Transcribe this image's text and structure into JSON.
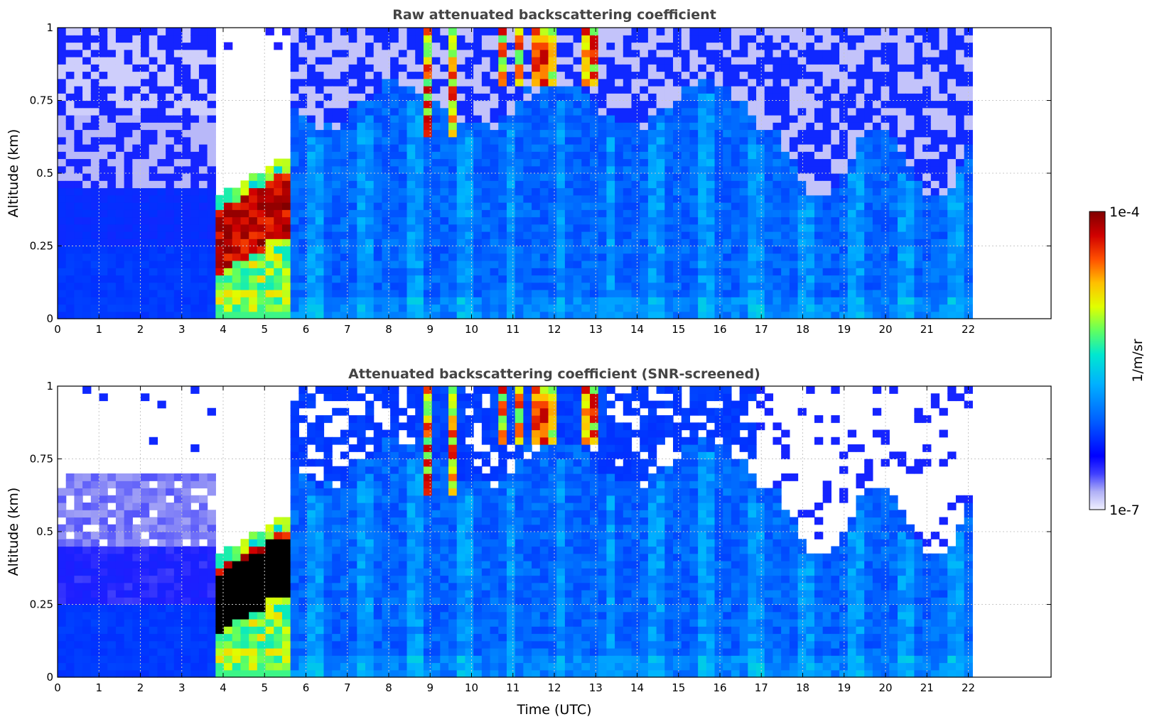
{
  "chart_data": [
    {
      "type": "heatmap",
      "title": "Raw attenuated backscattering coefficient",
      "xlabel": "",
      "ylabel": "Altitude (km)",
      "xlim": [
        0,
        24
      ],
      "ylim": [
        0,
        1
      ],
      "x_ticks": [
        0,
        1,
        2,
        3,
        4,
        5,
        6,
        7,
        8,
        9,
        10,
        11,
        12,
        13,
        14,
        15,
        16,
        17,
        18,
        19,
        20,
        21,
        22
      ],
      "y_ticks": [
        0,
        0.25,
        0.5,
        0.75,
        1
      ],
      "y_tick_labels": [
        "0",
        "0.25",
        "0.5",
        "0.75",
        "1"
      ],
      "data_end_time": 22.1,
      "screened": false,
      "grid": true,
      "features": [
        {
          "label": "dense low cloud",
          "t_start": 3.75,
          "t_end": 5.6,
          "alt_min": 0.0,
          "alt_max": 0.55,
          "level": "high"
        },
        {
          "label": "high cloud",
          "t_start": 8.7,
          "t_end": 9.8,
          "alt_min": 0.62,
          "alt_max": 1.0,
          "level": "high"
        },
        {
          "label": "high cloud",
          "t_start": 10.5,
          "t_end": 13.2,
          "alt_min": 0.8,
          "alt_max": 1.0,
          "level": "high"
        }
      ]
    },
    {
      "type": "heatmap",
      "title": "Attenuated backscattering coefficient (SNR-screened)",
      "xlabel": "Time (UTC)",
      "ylabel": "Altitude (km)",
      "xlim": [
        0,
        24
      ],
      "ylim": [
        0,
        1
      ],
      "x_ticks": [
        0,
        1,
        2,
        3,
        4,
        5,
        6,
        7,
        8,
        9,
        10,
        11,
        12,
        13,
        14,
        15,
        16,
        17,
        18,
        19,
        20,
        21,
        22
      ],
      "y_ticks": [
        0,
        0.25,
        0.5,
        0.75,
        1
      ],
      "y_tick_labels": [
        "0",
        "0.25",
        "0.5",
        "0.75",
        "1"
      ],
      "data_end_time": 22.1,
      "screened": true,
      "grid": true,
      "features": [
        {
          "label": "dense low cloud",
          "t_start": 3.75,
          "t_end": 5.6,
          "alt_min": 0.0,
          "alt_max": 0.55,
          "level": "saturated"
        },
        {
          "label": "high cloud",
          "t_start": 8.7,
          "t_end": 9.8,
          "alt_min": 0.62,
          "alt_max": 1.0,
          "level": "high"
        },
        {
          "label": "high cloud",
          "t_start": 10.5,
          "t_end": 13.2,
          "alt_min": 0.8,
          "alt_max": 1.0,
          "level": "high"
        }
      ]
    }
  ],
  "colorbar": {
    "min_label": "1e-7",
    "max_label": "1e-4",
    "label": "1/m/sr",
    "colors": [
      "#f0f0ff",
      "#c8c8f8",
      "#8080f0",
      "#0000ff",
      "#0040ff",
      "#0080ff",
      "#00c0ff",
      "#00ffc0",
      "#80ff40",
      "#ffff00",
      "#ffc000",
      "#ff6000",
      "#ff0000",
      "#c00000",
      "#800000"
    ]
  }
}
